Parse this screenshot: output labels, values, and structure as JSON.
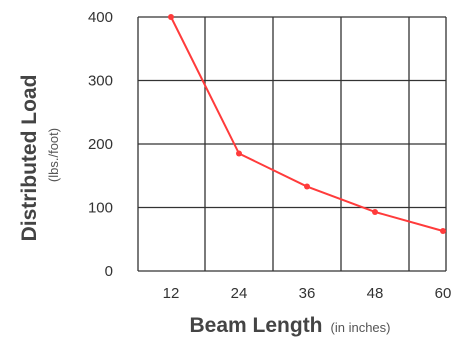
{
  "chart_data": {
    "type": "line",
    "x": [
      12,
      24,
      36,
      48,
      60
    ],
    "series": [
      {
        "values": [
          400,
          185,
          133,
          93,
          63
        ]
      }
    ],
    "x_ticks": [
      "12",
      "24",
      "36",
      "48",
      "60"
    ],
    "y_ticks": [
      "0",
      "100",
      "200",
      "300",
      "400"
    ],
    "ylim": [
      0,
      400
    ],
    "grid": true,
    "ylabel": "Distributed Load",
    "ylabel_unit": "(lbs./foot)",
    "xlabel": "Beam Length",
    "xlabel_unit": "(in inches)",
    "colors": {
      "line": "#ff3b3b",
      "grid": "#333333"
    }
  }
}
